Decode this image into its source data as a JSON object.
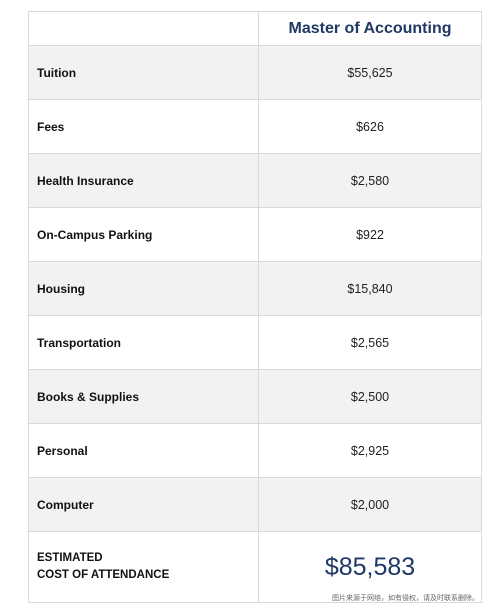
{
  "table": {
    "header": "Master of Accounting",
    "rows": [
      {
        "label": "Tuition",
        "value": "$55,625"
      },
      {
        "label": "Fees",
        "value": "$626"
      },
      {
        "label": "Health Insurance",
        "value": "$2,580"
      },
      {
        "label": "On-Campus Parking",
        "value": "$922"
      },
      {
        "label": "Housing",
        "value": "$15,840"
      },
      {
        "label": "Transportation",
        "value": "$2,565"
      },
      {
        "label": "Books & Supplies",
        "value": "$2,500"
      },
      {
        "label": "Personal",
        "value": "$2,925"
      },
      {
        "label": "Computer",
        "value": "$2,000"
      }
    ],
    "total": {
      "label_line1": "ESTIMATED",
      "label_line2": "COST OF ATTENDANCE",
      "value": "$85,583"
    }
  },
  "watermark": "图片来源于网络，如有侵权，请及时联系删除。",
  "colors": {
    "accent": "#1f3864",
    "row_shade": "#f2f2f2",
    "border": "#d9d9d9"
  }
}
